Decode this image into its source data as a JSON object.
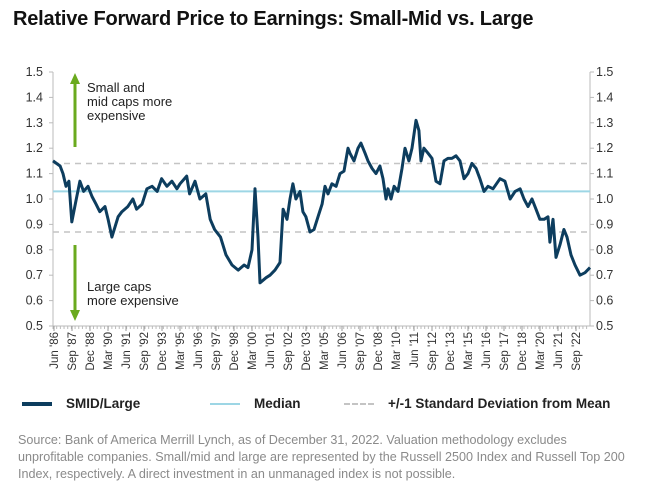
{
  "title": "Relative Forward Price to Earnings: Small-Mid vs. Large",
  "annotations": {
    "up": [
      "Small and",
      "mid caps more",
      "expensive"
    ],
    "down": [
      "Large caps",
      "more expensive"
    ]
  },
  "colors": {
    "series": "#0d3d5e",
    "median": "#9dd6e5",
    "stdev": "#c4c4c4",
    "arrow": "#6aaa1e",
    "axis": "#bbbbbb"
  },
  "legend": {
    "series": "SMID/Large",
    "median": "Median",
    "stdev": "+/-1 Standard Deviation from Mean"
  },
  "source": "Source: Bank of America Merrill Lynch, as of December 31, 2022. Valuation methodology excludes unprofitable companies. Small/mid and large are represented by the Russell 2500 Index and Russell Top 200 Index, respectively. A direct investment in an unmanaged index is not possible.",
  "chart_data": {
    "type": "line",
    "title": "Relative Forward Price to Earnings: Small-Mid vs. Large",
    "ylim": [
      0.5,
      1.5
    ],
    "yticks": [
      "0.5",
      "0.6",
      "0.7",
      "0.8",
      "0.9",
      "1.0",
      "1.1",
      "1.2",
      "1.3",
      "1.4",
      "1.5"
    ],
    "xticks": [
      "Jun '86",
      "Sep '87",
      "Dec '88",
      "Mar '90",
      "Jun '91",
      "Sep '92",
      "Dec '93",
      "Mar '95",
      "Jun '96",
      "Sep '97",
      "Dec '98",
      "Mar '00",
      "Jun '01",
      "Sep '02",
      "Dec '03",
      "Mar '05",
      "Jun '06",
      "Sep '07",
      "Dec '08",
      "Mar '10",
      "Jun '11",
      "Sep '12",
      "Dec '13",
      "Mar '15",
      "Jun '16",
      "Sep '17",
      "Dec '18",
      "Mar '20",
      "Jun '21",
      "Sep '22"
    ],
    "median": 1.03,
    "stdev_band": [
      0.87,
      1.14
    ],
    "grid": false,
    "legend_position": "bottom",
    "series": [
      {
        "name": "SMID/Large",
        "points": [
          [
            1986.42,
            1.15
          ],
          [
            1986.9,
            1.13
          ],
          [
            1987.1,
            1.1
          ],
          [
            1987.3,
            1.05
          ],
          [
            1987.5,
            1.07
          ],
          [
            1987.7,
            0.91
          ],
          [
            1988.0,
            1.0
          ],
          [
            1988.25,
            1.07
          ],
          [
            1988.5,
            1.03
          ],
          [
            1988.8,
            1.05
          ],
          [
            1989.07,
            1.01
          ],
          [
            1989.34,
            0.98
          ],
          [
            1989.6,
            0.95
          ],
          [
            1989.95,
            0.97
          ],
          [
            1990.16,
            0.92
          ],
          [
            1990.42,
            0.85
          ],
          [
            1990.84,
            0.93
          ],
          [
            1991.1,
            0.95
          ],
          [
            1991.5,
            0.97
          ],
          [
            1991.85,
            1.0
          ],
          [
            1992.1,
            0.96
          ],
          [
            1992.47,
            0.98
          ],
          [
            1992.8,
            1.04
          ],
          [
            1993.15,
            1.05
          ],
          [
            1993.5,
            1.03
          ],
          [
            1993.8,
            1.08
          ],
          [
            1994.16,
            1.05
          ],
          [
            1994.5,
            1.07
          ],
          [
            1994.84,
            1.04
          ],
          [
            1995.05,
            1.06
          ],
          [
            1995.5,
            1.09
          ],
          [
            1995.7,
            1.02
          ],
          [
            1996.07,
            1.07
          ],
          [
            1996.4,
            1.0
          ],
          [
            1996.8,
            1.02
          ],
          [
            1997.1,
            0.92
          ],
          [
            1997.4,
            0.88
          ],
          [
            1997.8,
            0.85
          ],
          [
            1998.17,
            0.78
          ],
          [
            1998.58,
            0.74
          ],
          [
            1999.0,
            0.72
          ],
          [
            1999.4,
            0.74
          ],
          [
            1999.67,
            0.73
          ],
          [
            1999.94,
            0.8
          ],
          [
            2000.14,
            1.04
          ],
          [
            2000.35,
            0.85
          ],
          [
            2000.48,
            0.67
          ],
          [
            2000.9,
            0.69
          ],
          [
            2001.16,
            0.7
          ],
          [
            2001.5,
            0.72
          ],
          [
            2001.84,
            0.75
          ],
          [
            2002.05,
            0.96
          ],
          [
            2002.32,
            0.92
          ],
          [
            2002.52,
            1.0
          ],
          [
            2002.72,
            1.06
          ],
          [
            2002.92,
            1.0
          ],
          [
            2003.2,
            1.03
          ],
          [
            2003.4,
            0.95
          ],
          [
            2003.6,
            0.93
          ],
          [
            2003.88,
            0.87
          ],
          [
            2004.15,
            0.88
          ],
          [
            2004.42,
            0.93
          ],
          [
            2004.7,
            0.98
          ],
          [
            2004.9,
            1.05
          ],
          [
            2005.1,
            1.02
          ],
          [
            2005.37,
            1.06
          ],
          [
            2005.65,
            1.05
          ],
          [
            2005.92,
            1.1
          ],
          [
            2006.19,
            1.11
          ],
          [
            2006.46,
            1.2
          ],
          [
            2006.6,
            1.18
          ],
          [
            2006.87,
            1.15
          ],
          [
            2007.14,
            1.2
          ],
          [
            2007.34,
            1.22
          ],
          [
            2007.62,
            1.18
          ],
          [
            2007.82,
            1.15
          ],
          [
            2008.1,
            1.12
          ],
          [
            2008.36,
            1.1
          ],
          [
            2008.63,
            1.13
          ],
          [
            2008.84,
            1.08
          ],
          [
            2009.04,
            1.0
          ],
          [
            2009.18,
            1.04
          ],
          [
            2009.38,
            1.0
          ],
          [
            2009.59,
            1.05
          ],
          [
            2009.86,
            1.03
          ],
          [
            2010.13,
            1.12
          ],
          [
            2010.33,
            1.2
          ],
          [
            2010.6,
            1.15
          ],
          [
            2010.81,
            1.2
          ],
          [
            2011.08,
            1.31
          ],
          [
            2011.28,
            1.27
          ],
          [
            2011.42,
            1.15
          ],
          [
            2011.62,
            1.2
          ],
          [
            2011.9,
            1.18
          ],
          [
            2012.17,
            1.16
          ],
          [
            2012.44,
            1.07
          ],
          [
            2012.71,
            1.06
          ],
          [
            2012.98,
            1.15
          ],
          [
            2013.25,
            1.16
          ],
          [
            2013.52,
            1.16
          ],
          [
            2013.8,
            1.17
          ],
          [
            2014.07,
            1.15
          ],
          [
            2014.34,
            1.08
          ],
          [
            2014.61,
            1.1
          ],
          [
            2014.88,
            1.14
          ],
          [
            2015.16,
            1.12
          ],
          [
            2015.42,
            1.08
          ],
          [
            2015.7,
            1.03
          ],
          [
            2015.97,
            1.05
          ],
          [
            2016.31,
            1.04
          ],
          [
            2016.79,
            1.08
          ],
          [
            2017.12,
            1.07
          ],
          [
            2017.47,
            1.0
          ],
          [
            2017.81,
            1.03
          ],
          [
            2018.15,
            1.04
          ],
          [
            2018.42,
            1.0
          ],
          [
            2018.69,
            0.97
          ],
          [
            2018.96,
            1.0
          ],
          [
            2019.23,
            0.96
          ],
          [
            2019.5,
            0.92
          ],
          [
            2019.78,
            0.92
          ],
          [
            2020.05,
            0.93
          ],
          [
            2020.18,
            0.83
          ],
          [
            2020.39,
            0.92
          ],
          [
            2020.59,
            0.77
          ],
          [
            2020.86,
            0.82
          ],
          [
            2021.13,
            0.88
          ],
          [
            2021.34,
            0.85
          ],
          [
            2021.61,
            0.78
          ],
          [
            2021.88,
            0.74
          ],
          [
            2022.22,
            0.7
          ],
          [
            2022.56,
            0.71
          ],
          [
            2022.9,
            0.73
          ]
        ]
      }
    ]
  }
}
